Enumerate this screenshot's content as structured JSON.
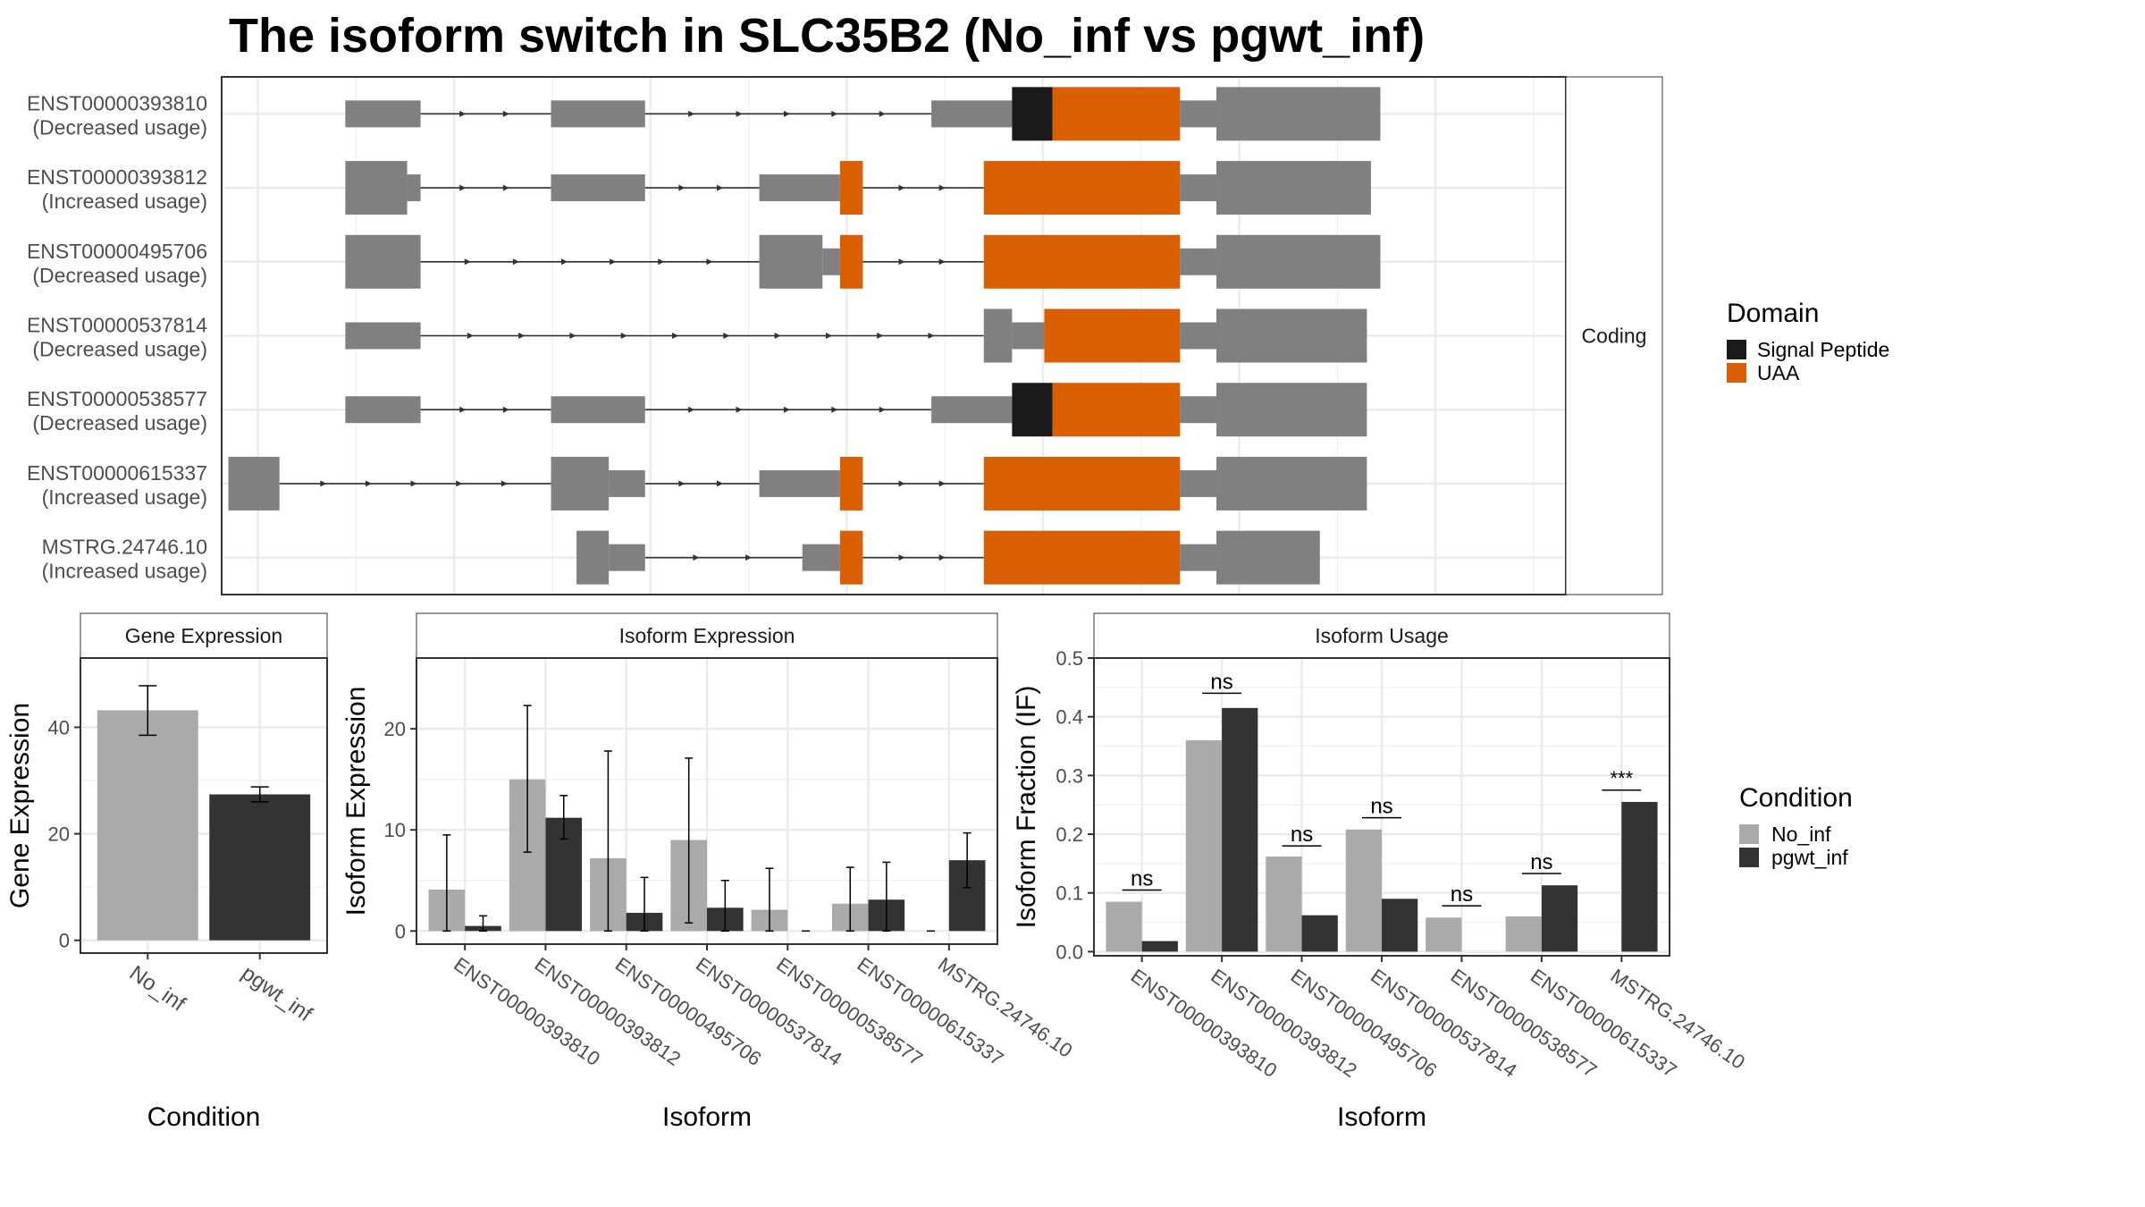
{
  "title": "The isoform switch in SLC35B2 (No_inf vs pgwt_inf)",
  "colors": {
    "exon": "#808080",
    "signal_peptide": "#1a1a1a",
    "uaa": "#d95f02",
    "no_inf": "#aaaaaa",
    "pgwt_inf": "#333333",
    "grid": "#ebebeb",
    "strip": "#ffffff"
  },
  "transcript_panel": {
    "strip_label": "Coding",
    "domain_legend": {
      "title": "Domain",
      "items": [
        {
          "name": "Signal Peptide",
          "color": "#1a1a1a"
        },
        {
          "name": "UAA",
          "color": "#d95f02"
        }
      ]
    },
    "isoforms": [
      {
        "id": "ENST00000393810",
        "usage": "(Decreased usage)",
        "segments": [
          [
            0.092,
            0.148,
            "u"
          ],
          [
            0.245,
            0.315,
            "u"
          ],
          [
            0.528,
            0.588,
            "u"
          ],
          [
            0.588,
            0.618,
            "sp"
          ],
          [
            0.618,
            0.713,
            "uaa"
          ],
          [
            0.713,
            0.74,
            "u"
          ],
          [
            0.74,
            0.862,
            "n"
          ]
        ]
      },
      {
        "id": "ENST00000393812",
        "usage": "(Increased usage)",
        "segments": [
          [
            0.092,
            0.138,
            "n"
          ],
          [
            0.138,
            0.148,
            "u"
          ],
          [
            0.245,
            0.315,
            "u"
          ],
          [
            0.4,
            0.46,
            "u"
          ],
          [
            0.46,
            0.477,
            "uaa"
          ],
          [
            0.567,
            0.713,
            "uaa"
          ],
          [
            0.713,
            0.74,
            "u"
          ],
          [
            0.74,
            0.855,
            "n"
          ]
        ]
      },
      {
        "id": "ENST00000495706",
        "usage": "(Decreased usage)",
        "segments": [
          [
            0.092,
            0.148,
            "n"
          ],
          [
            0.4,
            0.447,
            "n"
          ],
          [
            0.447,
            0.46,
            "u"
          ],
          [
            0.46,
            0.477,
            "uaa"
          ],
          [
            0.567,
            0.713,
            "uaa"
          ],
          [
            0.713,
            0.74,
            "u"
          ],
          [
            0.74,
            0.862,
            "n"
          ]
        ]
      },
      {
        "id": "ENST00000537814",
        "usage": "(Decreased usage)",
        "segments": [
          [
            0.092,
            0.148,
            "u"
          ],
          [
            0.567,
            0.588,
            "n"
          ],
          [
            0.588,
            0.612,
            "u"
          ],
          [
            0.612,
            0.713,
            "uaa"
          ],
          [
            0.713,
            0.74,
            "u"
          ],
          [
            0.74,
            0.852,
            "n"
          ]
        ]
      },
      {
        "id": "ENST00000538577",
        "usage": "(Decreased usage)",
        "segments": [
          [
            0.092,
            0.148,
            "u"
          ],
          [
            0.245,
            0.315,
            "u"
          ],
          [
            0.528,
            0.588,
            "u"
          ],
          [
            0.588,
            0.618,
            "sp"
          ],
          [
            0.618,
            0.713,
            "uaa"
          ],
          [
            0.713,
            0.74,
            "u"
          ],
          [
            0.74,
            0.852,
            "n"
          ]
        ]
      },
      {
        "id": "ENST00000615337",
        "usage": "(Increased usage)",
        "segments": [
          [
            0.005,
            0.043,
            "n"
          ],
          [
            0.245,
            0.288,
            "n"
          ],
          [
            0.288,
            0.315,
            "u"
          ],
          [
            0.4,
            0.46,
            "u"
          ],
          [
            0.46,
            0.477,
            "uaa"
          ],
          [
            0.567,
            0.713,
            "uaa"
          ],
          [
            0.713,
            0.74,
            "u"
          ],
          [
            0.74,
            0.852,
            "n"
          ]
        ]
      },
      {
        "id": "MSTRG.24746.10",
        "usage": "(Increased usage)",
        "segments": [
          [
            0.264,
            0.288,
            "n"
          ],
          [
            0.288,
            0.315,
            "u"
          ],
          [
            0.432,
            0.46,
            "u"
          ],
          [
            0.46,
            0.477,
            "uaa"
          ],
          [
            0.567,
            0.713,
            "uaa"
          ],
          [
            0.713,
            0.74,
            "u"
          ],
          [
            0.74,
            0.817,
            "n"
          ]
        ]
      }
    ]
  },
  "chart_data": [
    {
      "type": "bar",
      "strip": "Gene Expression",
      "xlabel": "Condition",
      "ylabel": "Gene Expression",
      "categories": [
        "No_inf",
        "pgwt_inf"
      ],
      "values": [
        43.2,
        27.4
      ],
      "error": [
        [
          38.5,
          47.8
        ],
        [
          26.0,
          28.8
        ]
      ],
      "ylim": [
        -2.4,
        53
      ],
      "yticks": [
        0,
        20,
        40
      ]
    },
    {
      "type": "bar",
      "strip": "Isoform Expression",
      "xlabel": "Isoform",
      "ylabel": "Isoform Expression",
      "categories": [
        "ENST00000393810",
        "ENST00000393812",
        "ENST00000495706",
        "ENST00000537814",
        "ENST00000538577",
        "ENST00000615337",
        "MSTRG.24746.10"
      ],
      "series": [
        {
          "name": "No_inf",
          "values": [
            4.1,
            15.0,
            7.2,
            9.0,
            2.1,
            2.7,
            0.0
          ],
          "error": [
            [
              0,
              9.5
            ],
            [
              7.8,
              22.3
            ],
            [
              0,
              17.8
            ],
            [
              0.8,
              17.1
            ],
            [
              0,
              6.2
            ],
            [
              0,
              6.3
            ],
            [
              0,
              0
            ]
          ]
        },
        {
          "name": "pgwt_inf",
          "values": [
            0.5,
            11.2,
            1.8,
            2.3,
            0.0,
            3.1,
            7.0
          ],
          "error": [
            [
              0,
              1.5
            ],
            [
              9.1,
              13.4
            ],
            [
              0,
              5.3
            ],
            [
              0,
              5.0
            ],
            [
              0,
              0
            ],
            [
              0,
              6.8
            ],
            [
              4.3,
              9.7
            ]
          ]
        }
      ],
      "ylim": [
        -1.3,
        27
      ],
      "yticks": [
        0,
        10,
        20
      ]
    },
    {
      "type": "bar",
      "strip": "Isoform Usage",
      "xlabel": "Isoform",
      "ylabel": "Isoform Fraction (IF)",
      "categories": [
        "ENST00000393810",
        "ENST00000393812",
        "ENST00000495706",
        "ENST00000537814",
        "ENST00000538577",
        "ENST00000615337",
        "MSTRG.24746.10"
      ],
      "series": [
        {
          "name": "No_inf",
          "values": [
            0.085,
            0.36,
            0.162,
            0.208,
            0.058,
            0.06,
            0.0
          ]
        },
        {
          "name": "pgwt_inf",
          "values": [
            0.018,
            0.415,
            0.062,
            0.09,
            0.0,
            0.113,
            0.255
          ]
        }
      ],
      "significance": [
        "ns",
        "ns",
        "ns",
        "ns",
        "ns",
        "ns",
        "***"
      ],
      "sig_y": [
        0.105,
        0.44,
        0.18,
        0.228,
        0.078,
        0.133,
        0.275
      ],
      "ylim": [
        -0.007,
        0.5
      ],
      "yticks": [
        0.0,
        0.1,
        0.2,
        0.3,
        0.4,
        0.5
      ],
      "ytick_labels": [
        "0.0",
        "0.1",
        "0.2",
        "0.3",
        "0.4",
        "0.5"
      ]
    }
  ],
  "condition_legend": {
    "title": "Condition",
    "items": [
      {
        "name": "No_inf",
        "color": "#aaaaaa"
      },
      {
        "name": "pgwt_inf",
        "color": "#333333"
      }
    ]
  }
}
